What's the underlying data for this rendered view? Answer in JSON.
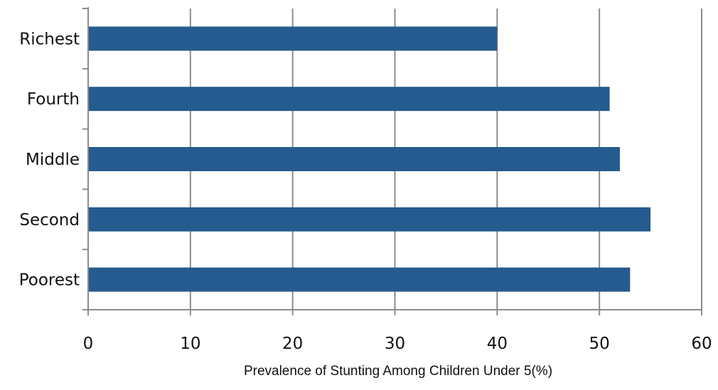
{
  "chart_data": {
    "type": "bar",
    "orientation": "horizontal",
    "categories": [
      "Richest",
      "Fourth",
      "Middle",
      "Second",
      "Poorest"
    ],
    "values": [
      40,
      51,
      52,
      55,
      53
    ],
    "xlim": [
      0,
      60
    ],
    "xticks": [
      "0",
      "10",
      "20",
      "30",
      "40",
      "50",
      "60"
    ],
    "xlabel": "Prevalence of Stunting Among Children Under 5(%)",
    "ylabel": "",
    "title": "",
    "grid": "vertical",
    "legend": "none",
    "bar_color": "#255b8f",
    "axis_color": "#8c8c8c",
    "grid_color": "#8c8c8c"
  }
}
